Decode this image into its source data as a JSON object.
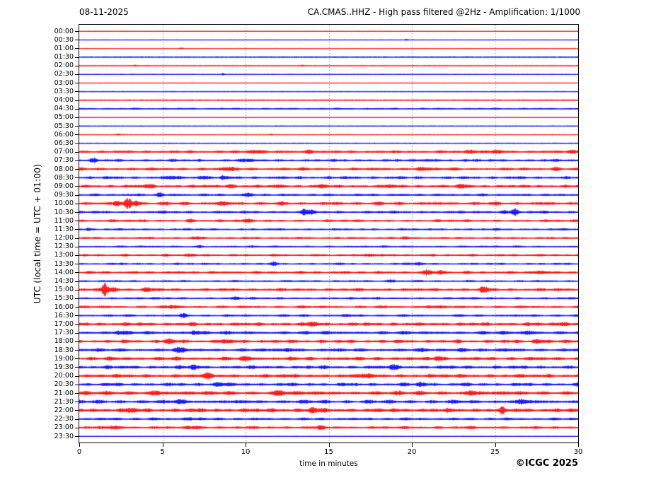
{
  "header": {
    "date": "08-11-2025",
    "title": "CA.CMAS..HHZ - High pass filtered @2Hz - Amplification: 1/1000"
  },
  "axes": {
    "y_label": "UTC (local time = UTC + 01:00)",
    "x_label": "time in minutes"
  },
  "footer": {
    "copyright": "©ICGC 2025"
  },
  "chart_data": {
    "type": "line",
    "subtype": "helicorder-seismogram",
    "station": "CA.CMAS..HHZ",
    "filter": "High pass filtered @2Hz",
    "amplification": "1/1000",
    "date": "08-11-2025",
    "xlabel": "time in minutes",
    "ylabel": "UTC (local time = UTC + 01:00)",
    "x_min": 0,
    "x_max": 30,
    "x_ticks": [
      0,
      5,
      10,
      15,
      20,
      25,
      30
    ],
    "gridlines_at_minutes": [
      5,
      10,
      15,
      20,
      25
    ],
    "grid_style": "dotted-vertical",
    "minutes_per_row": 30,
    "color_map": {
      "red": "#ff0000",
      "blue": "#0000ff"
    },
    "bursts_format": "[minute, peak_amplitude_px, duration_minutes]",
    "rows": [
      {
        "time": "00:00",
        "color": "red",
        "noise": 0.5,
        "bursts": []
      },
      {
        "time": "00:30",
        "color": "blue",
        "noise": 0.5,
        "bursts": [
          [
            19.6,
            1.2,
            0.15
          ]
        ]
      },
      {
        "time": "01:00",
        "color": "red",
        "noise": 0.5,
        "bursts": [
          [
            6.1,
            1.2,
            0.2
          ]
        ]
      },
      {
        "time": "01:30",
        "color": "blue",
        "noise": 0.9,
        "bursts": []
      },
      {
        "time": "02:00",
        "color": "red",
        "noise": 0.6,
        "bursts": [
          [
            3.3,
            1.0,
            0.15
          ],
          [
            13.4,
            1.0,
            0.15
          ]
        ]
      },
      {
        "time": "02:30",
        "color": "blue",
        "noise": 0.6,
        "bursts": [
          [
            8.6,
            1.4,
            0.15
          ]
        ]
      },
      {
        "time": "03:00",
        "color": "red",
        "noise": 0.5,
        "bursts": []
      },
      {
        "time": "03:30",
        "color": "blue",
        "noise": 0.6,
        "bursts": []
      },
      {
        "time": "04:00",
        "color": "red",
        "noise": 0.9,
        "bursts": []
      },
      {
        "time": "04:30",
        "color": "blue",
        "noise": 1.1,
        "bursts": []
      },
      {
        "time": "05:00",
        "color": "red",
        "noise": 0.5,
        "bursts": []
      },
      {
        "time": "05:30",
        "color": "blue",
        "noise": 0.7,
        "bursts": []
      },
      {
        "time": "06:00",
        "color": "red",
        "noise": 0.6,
        "bursts": [
          [
            2.3,
            1.0,
            0.2
          ],
          [
            11.5,
            0.9,
            0.15
          ]
        ]
      },
      {
        "time": "06:30",
        "color": "blue",
        "noise": 0.7,
        "bursts": []
      },
      {
        "time": "07:00",
        "color": "red",
        "noise": 1.6,
        "bursts": [
          [
            10.5,
            2.0,
            0.8
          ],
          [
            13.8,
            1.8,
            0.6
          ],
          [
            23.5,
            2.0,
            0.8
          ],
          [
            25.0,
            1.8,
            0.5
          ],
          [
            29.5,
            2.0,
            0.5
          ]
        ]
      },
      {
        "time": "07:30",
        "color": "blue",
        "noise": 1.6,
        "bursts": [
          [
            0.8,
            2.0,
            0.4
          ],
          [
            9.8,
            1.8,
            0.5
          ],
          [
            21.0,
            1.6,
            0.6
          ]
        ]
      },
      {
        "time": "08:00",
        "color": "red",
        "noise": 1.7,
        "bursts": [
          [
            8.8,
            2.0,
            0.7
          ],
          [
            20.5,
            1.8,
            0.8
          ],
          [
            28.6,
            1.6,
            0.5
          ]
        ]
      },
      {
        "time": "08:30",
        "color": "blue",
        "noise": 1.7,
        "bursts": [
          [
            5.5,
            2.0,
            0.5
          ],
          [
            7.3,
            2.2,
            0.4
          ],
          [
            8.6,
            1.8,
            0.3
          ]
        ]
      },
      {
        "time": "09:00",
        "color": "red",
        "noise": 1.8,
        "bursts": [
          [
            4.0,
            2.0,
            0.5
          ],
          [
            9.0,
            1.8,
            0.5
          ],
          [
            12.0,
            1.6,
            0.4
          ],
          [
            14.5,
            1.8,
            0.5
          ],
          [
            18.5,
            1.6,
            0.5
          ],
          [
            23.0,
            1.8,
            0.6
          ]
        ]
      },
      {
        "time": "09:30",
        "color": "blue",
        "noise": 1.5,
        "bursts": [
          [
            4.8,
            2.8,
            0.3
          ],
          [
            10.0,
            1.6,
            0.5
          ]
        ]
      },
      {
        "time": "10:00",
        "color": "red",
        "noise": 2.0,
        "bursts": [
          [
            2.2,
            3.5,
            0.25
          ],
          [
            2.9,
            8.5,
            0.35
          ],
          [
            3.4,
            3.0,
            0.3
          ],
          [
            8.5,
            1.8,
            0.5
          ]
        ]
      },
      {
        "time": "10:30",
        "color": "blue",
        "noise": 1.6,
        "bursts": [
          [
            13.5,
            5.0,
            0.3
          ],
          [
            13.9,
            2.5,
            0.3
          ],
          [
            25.5,
            2.0,
            0.5
          ],
          [
            26.1,
            5.0,
            0.3
          ]
        ]
      },
      {
        "time": "11:00",
        "color": "red",
        "noise": 1.5,
        "bursts": [
          [
            6.6,
            1.8,
            0.4
          ],
          [
            10.0,
            1.5,
            0.4
          ]
        ]
      },
      {
        "time": "11:30",
        "color": "blue",
        "noise": 1.3,
        "bursts": [
          [
            0.5,
            2.0,
            0.25
          ]
        ]
      },
      {
        "time": "12:00",
        "color": "red",
        "noise": 1.3,
        "bursts": [
          [
            7.0,
            1.4,
            0.4
          ],
          [
            19.5,
            1.3,
            0.3
          ]
        ]
      },
      {
        "time": "12:30",
        "color": "blue",
        "noise": 1.2,
        "bursts": [
          [
            7.2,
            2.0,
            0.25
          ]
        ]
      },
      {
        "time": "13:00",
        "color": "red",
        "noise": 1.5,
        "bursts": [
          [
            6.5,
            1.6,
            0.5
          ],
          [
            17.5,
            1.6,
            0.5
          ]
        ]
      },
      {
        "time": "13:30",
        "color": "blue",
        "noise": 1.3,
        "bursts": [
          [
            11.7,
            1.8,
            0.3
          ],
          [
            20.3,
            1.8,
            0.4
          ]
        ]
      },
      {
        "time": "14:00",
        "color": "red",
        "noise": 1.6,
        "bursts": [
          [
            20.9,
            3.2,
            0.4
          ],
          [
            21.7,
            2.4,
            0.4
          ],
          [
            27.5,
            1.8,
            0.6
          ]
        ]
      },
      {
        "time": "14:30",
        "color": "blue",
        "noise": 1.2,
        "bursts": [
          [
            18.7,
            1.8,
            0.4
          ]
        ]
      },
      {
        "time": "15:00",
        "color": "red",
        "noise": 1.8,
        "bursts": [
          [
            1.5,
            9.5,
            0.3
          ],
          [
            2.0,
            3.0,
            0.4
          ],
          [
            4.0,
            2.0,
            0.5
          ],
          [
            24.3,
            3.8,
            0.4
          ]
        ]
      },
      {
        "time": "15:30",
        "color": "blue",
        "noise": 1.4,
        "bursts": [
          [
            9.3,
            1.6,
            0.4
          ]
        ]
      },
      {
        "time": "16:00",
        "color": "red",
        "noise": 1.6,
        "bursts": [
          [
            5.6,
            2.2,
            0.4
          ],
          [
            21.0,
            1.8,
            0.5
          ]
        ]
      },
      {
        "time": "16:30",
        "color": "blue",
        "noise": 1.4,
        "bursts": [
          [
            6.2,
            2.6,
            0.3
          ],
          [
            16.0,
            1.6,
            0.4
          ]
        ]
      },
      {
        "time": "17:00",
        "color": "red",
        "noise": 2.1,
        "bursts": [
          [
            14.0,
            2.2,
            0.6
          ],
          [
            29.0,
            2.4,
            0.5
          ]
        ]
      },
      {
        "time": "17:30",
        "color": "blue",
        "noise": 2.0,
        "bursts": [
          [
            2.3,
            2.4,
            0.4
          ],
          [
            6.9,
            2.6,
            0.5
          ],
          [
            27.0,
            2.2,
            0.5
          ]
        ]
      },
      {
        "time": "18:00",
        "color": "red",
        "noise": 2.0,
        "bursts": [
          [
            5.3,
            2.4,
            0.5
          ],
          [
            8.7,
            2.6,
            0.4
          ],
          [
            27.5,
            2.2,
            0.6
          ]
        ]
      },
      {
        "time": "18:30",
        "color": "blue",
        "noise": 2.0,
        "bursts": [
          [
            5.9,
            2.6,
            0.5
          ],
          [
            12.5,
            2.2,
            0.5
          ],
          [
            23.0,
            2.2,
            0.5
          ]
        ]
      },
      {
        "time": "19:00",
        "color": "red",
        "noise": 2.1,
        "bursts": [
          [
            10.0,
            2.4,
            0.6
          ],
          [
            21.5,
            2.4,
            0.5
          ]
        ]
      },
      {
        "time": "19:30",
        "color": "blue",
        "noise": 2.0,
        "bursts": [
          [
            6.8,
            2.2,
            0.5
          ],
          [
            18.8,
            2.6,
            0.5
          ]
        ]
      },
      {
        "time": "20:00",
        "color": "red",
        "noise": 2.1,
        "bursts": [
          [
            7.7,
            3.2,
            0.4
          ],
          [
            17.0,
            2.2,
            0.6
          ]
        ]
      },
      {
        "time": "20:30",
        "color": "blue",
        "noise": 2.0,
        "bursts": [
          [
            8.3,
            2.4,
            0.5
          ],
          [
            20.5,
            2.2,
            0.5
          ]
        ]
      },
      {
        "time": "21:00",
        "color": "red",
        "noise": 2.4,
        "bursts": [
          [
            4.5,
            2.6,
            0.6
          ],
          [
            12.0,
            2.6,
            0.6
          ],
          [
            23.5,
            2.6,
            0.6
          ]
        ]
      },
      {
        "time": "21:30",
        "color": "blue",
        "noise": 2.1,
        "bursts": [
          [
            6.0,
            2.4,
            0.5
          ],
          [
            26.5,
            2.4,
            0.5
          ]
        ]
      },
      {
        "time": "22:00",
        "color": "red",
        "noise": 2.4,
        "bursts": [
          [
            3.0,
            2.6,
            0.5
          ],
          [
            14.0,
            2.4,
            0.6
          ],
          [
            25.4,
            4.2,
            0.2
          ]
        ]
      },
      {
        "time": "22:30",
        "color": "blue",
        "noise": 1.6,
        "bursts": [
          [
            6.5,
            2.0,
            0.5
          ]
        ]
      },
      {
        "time": "23:00",
        "color": "red",
        "noise": 1.7,
        "bursts": [
          [
            2.0,
            2.0,
            0.5
          ],
          [
            7.0,
            2.2,
            0.5
          ],
          [
            14.5,
            2.0,
            0.4
          ]
        ]
      },
      {
        "time": "23:30",
        "color": "blue",
        "noise": 0.5,
        "bursts": []
      }
    ]
  }
}
